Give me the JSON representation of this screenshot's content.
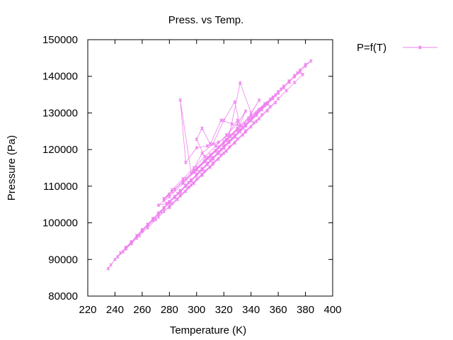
{
  "chart_data": {
    "type": "line",
    "title": "Press. vs Temp.",
    "xlabel": "Temperature (K)",
    "ylabel": "Pressure (Pa)",
    "xlim": [
      220,
      400
    ],
    "ylim": [
      80000,
      150000
    ],
    "x_ticks": [
      220,
      240,
      260,
      280,
      300,
      320,
      340,
      360,
      380,
      400
    ],
    "y_ticks": [
      80000,
      90000,
      100000,
      110000,
      120000,
      130000,
      140000,
      150000
    ],
    "grid": false,
    "legend_position": "outside-top-right",
    "series_color": "#ee82ee",
    "series": [
      {
        "name": "P=f(T)",
        "x": [
          235,
          237,
          240,
          244,
          248,
          252,
          256,
          260,
          264,
          268,
          272,
          276,
          280,
          284,
          288,
          292,
          296,
          300,
          304,
          308,
          312,
          316,
          320,
          324,
          328,
          332,
          336,
          340,
          344,
          348,
          352,
          356,
          360,
          364,
          368,
          372,
          376,
          380,
          384,
          380,
          376,
          372,
          368,
          364,
          360,
          356,
          352,
          348,
          344,
          340,
          336,
          332,
          328,
          324,
          320,
          316,
          312,
          308,
          304,
          300,
          296,
          292,
          288,
          284,
          280,
          276,
          272,
          268,
          264,
          260,
          256,
          252,
          248,
          252,
          260,
          268,
          274,
          280,
          288,
          296,
          304,
          312,
          320,
          328,
          336,
          344,
          352,
          358,
          350,
          342,
          334,
          326,
          318,
          310,
          302,
          294,
          286,
          278,
          272,
          280,
          290,
          300,
          310,
          320,
          330,
          340,
          350,
          340,
          330,
          320,
          310,
          300,
          290,
          280,
          276,
          284,
          292,
          300,
          308,
          316,
          324,
          332,
          328,
          320,
          312,
          304,
          296,
          288,
          292,
          300,
          308,
          316,
          324,
          332,
          340,
          346,
          338,
          330,
          322,
          314,
          306,
          298,
          290,
          298,
          306,
          314,
          322,
          330,
          336,
          330,
          322,
          314,
          306,
          300,
          304,
          310,
          318,
          326,
          334,
          330,
          322,
          314,
          306,
          298,
          290,
          282,
          276,
          282,
          290,
          298,
          306,
          314,
          322,
          330,
          338,
          346,
          354,
          362,
          368,
          374,
          378,
          372,
          366,
          360,
          354,
          348,
          342,
          336,
          330,
          324,
          318,
          312,
          306,
          300,
          294,
          288,
          282,
          276,
          270,
          264,
          258,
          252,
          246,
          242,
          248,
          256,
          264,
          272,
          280,
          288,
          296,
          304,
          312,
          320,
          328,
          336,
          344,
          352,
          358,
          352,
          346,
          340,
          334,
          328,
          322,
          316,
          310,
          304,
          298,
          292,
          286,
          280
        ],
        "y": [
          87500,
          88500,
          90000,
          91800,
          93300,
          94800,
          96500,
          98100,
          99600,
          101200,
          102700,
          104200,
          105700,
          107200,
          108800,
          110300,
          111700,
          113300,
          114800,
          116300,
          117800,
          119400,
          120900,
          122400,
          123900,
          125400,
          126900,
          128400,
          129900,
          131300,
          132800,
          134300,
          135800,
          137300,
          138700,
          140200,
          141700,
          143200,
          144200,
          142800,
          141300,
          139900,
          138400,
          136900,
          135400,
          133900,
          132400,
          130900,
          129400,
          127900,
          126400,
          124900,
          123400,
          121900,
          120400,
          118900,
          117400,
          115900,
          114400,
          112900,
          111400,
          109900,
          108400,
          106900,
          105400,
          103900,
          102400,
          100900,
          99400,
          97900,
          96400,
          94800,
          93000,
          94600,
          97700,
          100700,
          103000,
          105800,
          108600,
          111600,
          114600,
          117600,
          120600,
          123600,
          126600,
          129600,
          132600,
          134900,
          132000,
          129000,
          126000,
          123000,
          120000,
          117000,
          114000,
          111000,
          108000,
          105300,
          104800,
          107100,
          110800,
          114400,
          118000,
          121700,
          125300,
          128900,
          132500,
          129400,
          125800,
          122200,
          118600,
          115000,
          111400,
          107800,
          106200,
          109100,
          112000,
          114900,
          117800,
          120700,
          123600,
          126500,
          133000,
          128000,
          121500,
          119000,
          113500,
          133500,
          116500,
          120500,
          121000,
          122000,
          124000,
          138200,
          130000,
          133500,
          128600,
          125700,
          122700,
          119700,
          116800,
          113800,
          110900,
          113800,
          116700,
          119600,
          122500,
          125400,
          130500,
          127000,
          124000,
          121000,
          118000,
          122800,
          125800,
          121500,
          128000,
          127000,
          126000,
          128000,
          123900,
          121000,
          118000,
          115000,
          112000,
          109000,
          106600,
          108500,
          111300,
          114100,
          116900,
          119700,
          122500,
          125300,
          128100,
          130900,
          133700,
          136500,
          138700,
          140900,
          140500,
          138300,
          136100,
          133900,
          131700,
          129500,
          127300,
          125100,
          122900,
          120700,
          118500,
          116300,
          114100,
          111900,
          109700,
          107500,
          105300,
          103100,
          100900,
          98700,
          96500,
          94300,
          92100,
          90700,
          92900,
          95800,
          98700,
          101600,
          104500,
          107400,
          110300,
          113200,
          116100,
          119000,
          121900,
          124800,
          127700,
          130600,
          132800,
          130600,
          128400,
          126200,
          124000,
          121800,
          119600,
          117400,
          115200,
          113000,
          110800,
          108600,
          106400,
          104200
        ]
      }
    ]
  }
}
